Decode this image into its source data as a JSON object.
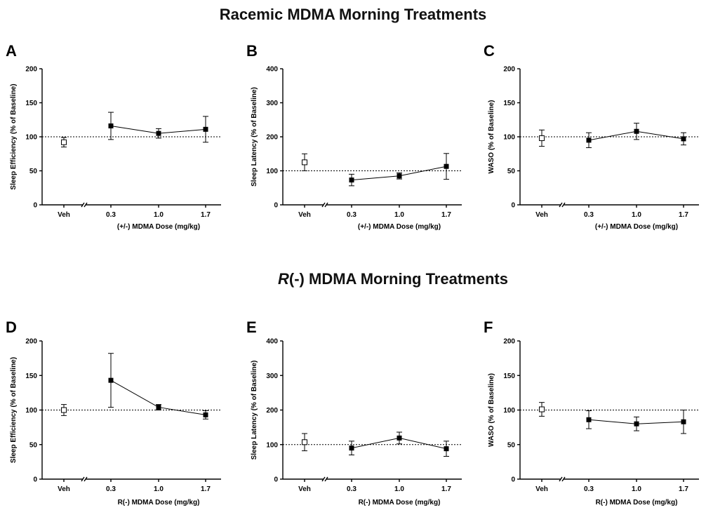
{
  "row_titles": [
    {
      "prefix": "",
      "italic": "",
      "text": "Racemic MDMA Morning Treatments"
    },
    {
      "prefix": "",
      "italic": "R",
      "text": "(-) MDMA Morning Treatments"
    }
  ],
  "chart_data": [
    {
      "type": "scatter",
      "panel": "A",
      "row": 0,
      "ylabel": "Sleep Efficiency (% of Baseline)",
      "xlabel": "(+/-) MDMA Dose (mg/kg)",
      "ylim": [
        0,
        200
      ],
      "yticks": [
        0,
        50,
        100,
        150,
        200
      ],
      "reference_line": 100,
      "vehicle": {
        "label": "Veh",
        "value": 92,
        "error": 7
      },
      "doses": {
        "categories": [
          "0.3",
          "1.0",
          "1.7"
        ],
        "values": [
          116,
          105,
          111
        ],
        "errors": [
          20,
          7,
          19
        ]
      }
    },
    {
      "type": "scatter",
      "panel": "B",
      "row": 0,
      "ylabel": "Sleep Latency (% of Baseline)",
      "xlabel": "(+/-) MDMA Dose (mg/kg)",
      "ylim": [
        0,
        400
      ],
      "yticks": [
        0,
        100,
        200,
        300,
        400
      ],
      "reference_line": 100,
      "vehicle": {
        "label": "Veh",
        "value": 125,
        "error": 25
      },
      "doses": {
        "categories": [
          "0.3",
          "1.0",
          "1.7"
        ],
        "values": [
          73,
          85,
          113
        ],
        "errors": [
          17,
          9,
          38
        ]
      }
    },
    {
      "type": "scatter",
      "panel": "C",
      "row": 0,
      "ylabel": "WASO (% of Baseline)",
      "xlabel": "(+/-) MDMA Dose (mg/kg)",
      "ylim": [
        0,
        200
      ],
      "yticks": [
        0,
        50,
        100,
        150,
        200
      ],
      "reference_line": 100,
      "vehicle": {
        "label": "Veh",
        "value": 98,
        "error": 12
      },
      "doses": {
        "categories": [
          "0.3",
          "1.0",
          "1.7"
        ],
        "values": [
          95,
          108,
          97
        ],
        "errors": [
          11,
          12,
          9
        ]
      }
    },
    {
      "type": "scatter",
      "panel": "D",
      "row": 1,
      "ylabel": "Sleep Efficiency (% of Baseline)",
      "xlabel": "R(-) MDMA Dose (mg/kg)",
      "ylim": [
        0,
        200
      ],
      "yticks": [
        0,
        50,
        100,
        150,
        200
      ],
      "reference_line": 100,
      "vehicle": {
        "label": "Veh",
        "value": 100,
        "error": 8
      },
      "doses": {
        "categories": [
          "0.3",
          "1.0",
          "1.7"
        ],
        "values": [
          143,
          104,
          93
        ],
        "errors": [
          39,
          4,
          6
        ]
      }
    },
    {
      "type": "scatter",
      "panel": "E",
      "row": 1,
      "ylabel": "Sleep Latency (% of Baseline)",
      "xlabel": "R(-) MDMA Dose (mg/kg)",
      "ylim": [
        0,
        400
      ],
      "yticks": [
        0,
        100,
        200,
        300,
        400
      ],
      "reference_line": 100,
      "vehicle": {
        "label": "Veh",
        "value": 107,
        "error": 25
      },
      "doses": {
        "categories": [
          "0.3",
          "1.0",
          "1.7"
        ],
        "values": [
          90,
          119,
          88
        ],
        "errors": [
          20,
          17,
          22
        ]
      }
    },
    {
      "type": "scatter",
      "panel": "F",
      "row": 1,
      "ylabel": "WASO (% of Baseline)",
      "xlabel": "R(-) MDMA Dose (mg/kg)",
      "ylim": [
        0,
        200
      ],
      "yticks": [
        0,
        50,
        100,
        150,
        200
      ],
      "reference_line": 100,
      "vehicle": {
        "label": "Veh",
        "value": 101,
        "error": 10
      },
      "doses": {
        "categories": [
          "0.3",
          "1.0",
          "1.7"
        ],
        "values": [
          86,
          80,
          83
        ],
        "errors": [
          13,
          10,
          17
        ]
      }
    }
  ]
}
